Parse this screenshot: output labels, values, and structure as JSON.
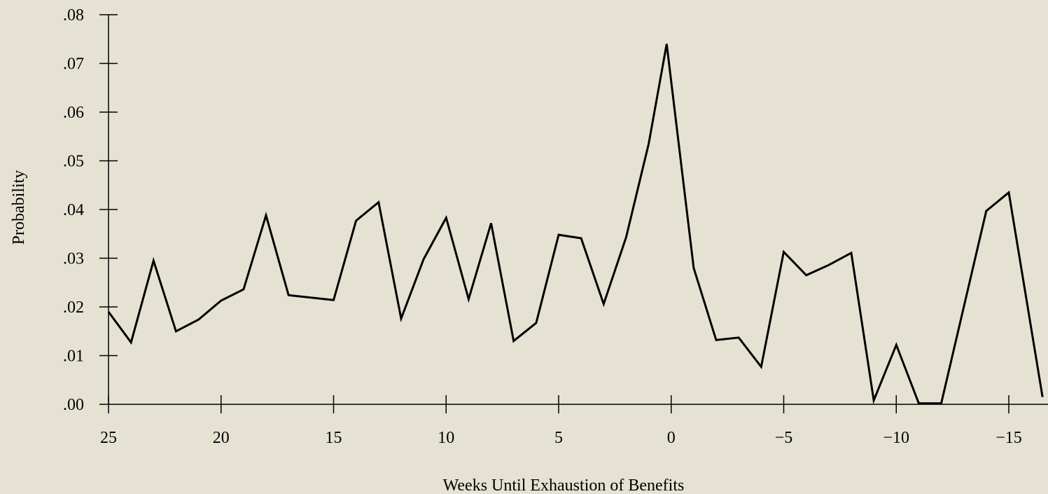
{
  "chart_data": {
    "type": "line",
    "title": "",
    "xlabel": "Weeks Until Exhaustion of Benefits",
    "ylabel": "Probability",
    "xlim": [
      25,
      -16.5
    ],
    "ylim": [
      0,
      0.08
    ],
    "x_ticks": [
      {
        "value": 25,
        "label": "25"
      },
      {
        "value": 20,
        "label": "20"
      },
      {
        "value": 15,
        "label": "15"
      },
      {
        "value": 10,
        "label": "10"
      },
      {
        "value": 5,
        "label": "5"
      },
      {
        "value": 0,
        "label": "0"
      },
      {
        "value": -5,
        "label": "−5"
      },
      {
        "value": -10,
        "label": "−10"
      },
      {
        "value": -15,
        "label": "−15"
      }
    ],
    "y_ticks": [
      {
        "value": 0.0,
        "label": ".00"
      },
      {
        "value": 0.01,
        "label": ".01"
      },
      {
        "value": 0.02,
        "label": ".02"
      },
      {
        "value": 0.03,
        "label": ".03"
      },
      {
        "value": 0.04,
        "label": ".04"
      },
      {
        "value": 0.05,
        "label": ".05"
      },
      {
        "value": 0.06,
        "label": ".06"
      },
      {
        "value": 0.07,
        "label": ".07"
      },
      {
        "value": 0.08,
        "label": ".08"
      }
    ],
    "grid": false,
    "series": [
      {
        "x": [
          25,
          24,
          23,
          22,
          21,
          20,
          19,
          18,
          17,
          15,
          14,
          13,
          12,
          11,
          10,
          9.8,
          9,
          8,
          7,
          6,
          5,
          4,
          3,
          2,
          1,
          0.2,
          -1,
          -2,
          -3,
          -4,
          -5,
          -6,
          -7,
          -8,
          -9,
          -10,
          -11,
          -12,
          -14,
          -15,
          -16.5
        ],
        "y": [
          0.019,
          0.0127,
          0.0295,
          0.015,
          0.0174,
          0.0213,
          0.0236,
          0.0388,
          0.0224,
          0.0214,
          0.0377,
          0.0415,
          0.0176,
          0.0298,
          0.0383,
          0.035,
          0.0216,
          0.0372,
          0.013,
          0.0167,
          0.0348,
          0.0341,
          0.0206,
          0.0343,
          0.0535,
          0.074,
          0.028,
          0.0132,
          0.0137,
          0.0077,
          0.0313,
          0.0265,
          0.0286,
          0.0311,
          0.0008,
          0.0122,
          0.0002,
          0.0002,
          0.0397,
          0.0435,
          0.0015
        ]
      }
    ],
    "line_color": "#000000",
    "background_color": "#e6e2d3"
  }
}
